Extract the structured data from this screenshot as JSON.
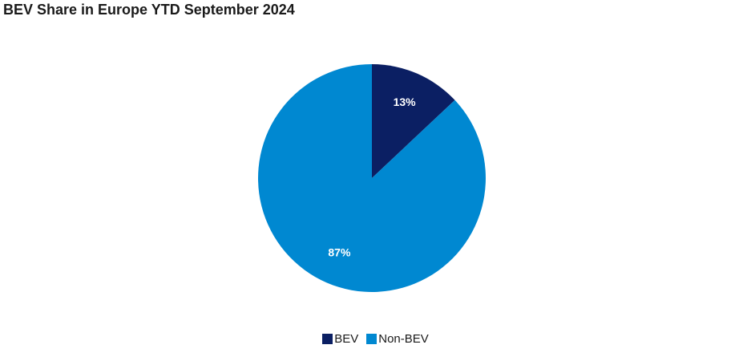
{
  "chart_data": {
    "type": "pie",
    "title": "BEV Share in Europe YTD September 2024",
    "categories": [
      "BEV",
      "Non-BEV"
    ],
    "values": [
      13,
      87
    ],
    "data_labels": [
      "13%",
      "87%"
    ],
    "colors": [
      "#0b1f63",
      "#0088d1"
    ],
    "legend_placement": "bottom"
  }
}
